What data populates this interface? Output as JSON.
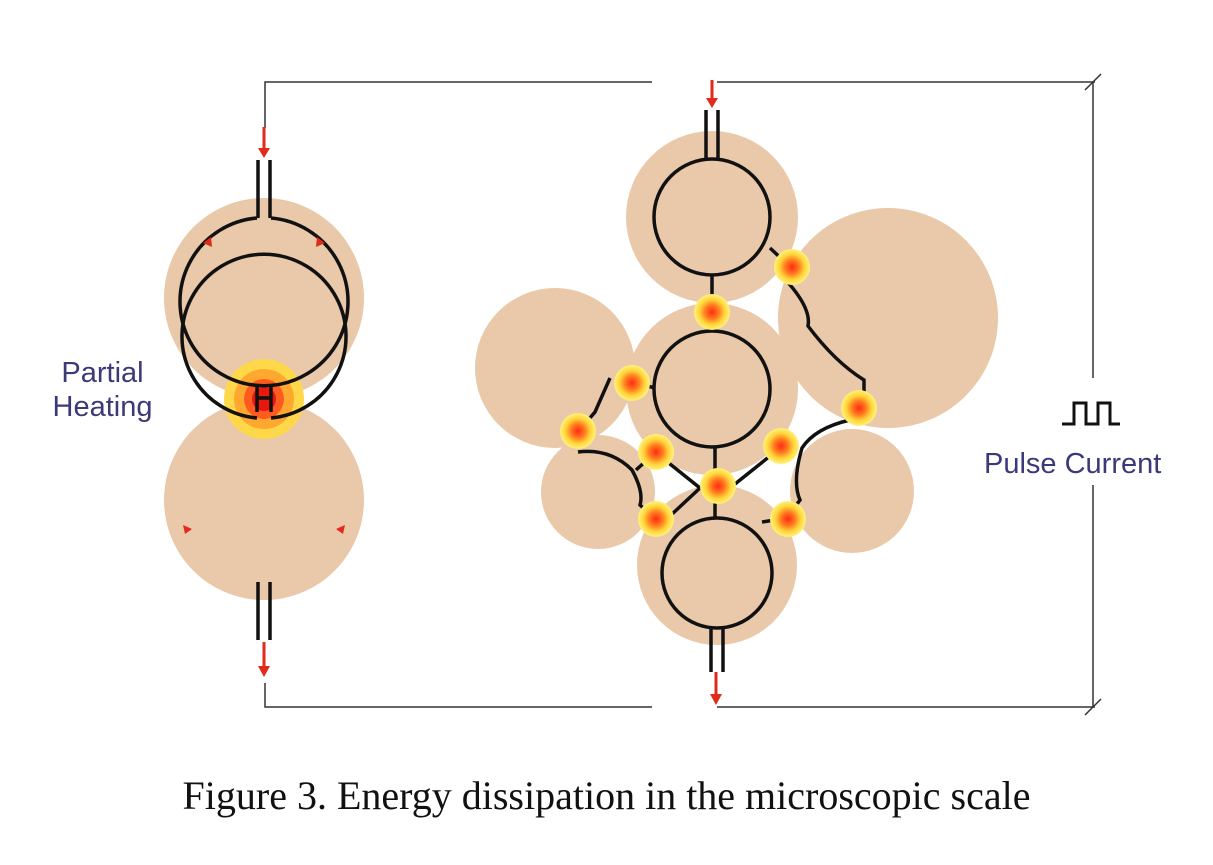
{
  "labels": {
    "partial_heating_line1": "Partial",
    "partial_heating_line2": "Heating",
    "pulse_current": "Pulse Current"
  },
  "caption": "Figure 3. Energy dissipation in the microscopic scale",
  "icons": {
    "pulse": "square-wave-icon",
    "current_arrow": "red-arrow-icon"
  },
  "colors": {
    "particle": "#e9c9aa",
    "conductor": "#111111",
    "arrow": "#e02a1a",
    "hotspot_outer": "#ffee50",
    "hotspot_inner": "#ff3a18",
    "label": "#3a3a7a"
  }
}
